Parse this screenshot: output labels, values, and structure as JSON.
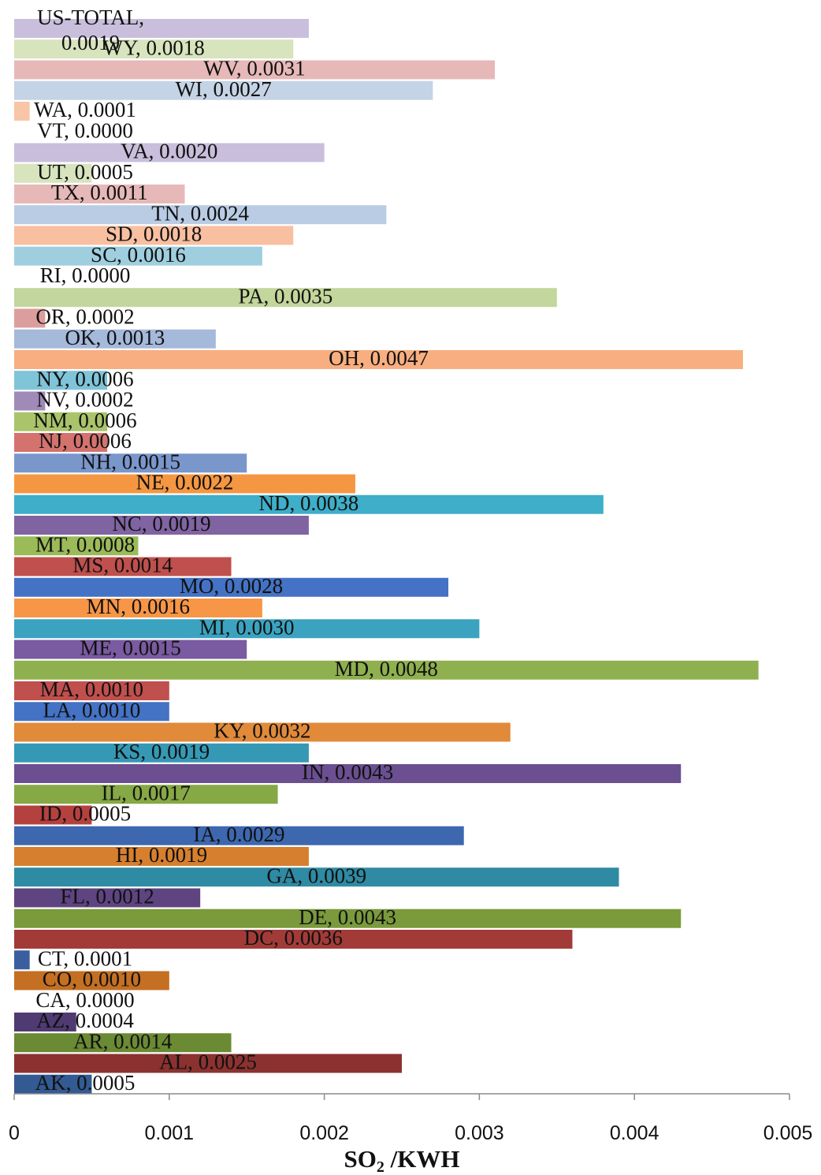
{
  "chart_data": {
    "type": "bar",
    "orientation": "horizontal",
    "title": "",
    "xlabel": "SO2 /KWH",
    "ylabel": "",
    "xlim": [
      0,
      0.005
    ],
    "x_ticks": [
      0,
      0.001,
      0.002,
      0.003,
      0.004,
      0.005
    ],
    "x_tick_labels": [
      "0",
      "0.001",
      "0.002",
      "0.003",
      "0.004",
      "0.005"
    ],
    "grid": false,
    "legend": "none",
    "bars": [
      {
        "label": "US-TOTAL",
        "value": 0.0019,
        "value_text": "0.0019",
        "color": "#c9bfdc"
      },
      {
        "label": "WY",
        "value": 0.0018,
        "value_text": "0.0018",
        "color": "#d7e4bd"
      },
      {
        "label": "WV",
        "value": 0.0031,
        "value_text": "0.0031",
        "color": "#e6b9b8"
      },
      {
        "label": "WI",
        "value": 0.0027,
        "value_text": "0.0027",
        "color": "#c5d3e6"
      },
      {
        "label": "WA",
        "value": 0.0001,
        "value_text": "0.0001",
        "color": "#f8c6a6"
      },
      {
        "label": "VT",
        "value": 0.0,
        "value_text": "0.0000",
        "color": "#b9a9d0"
      },
      {
        "label": "VA",
        "value": 0.002,
        "value_text": "0.0020",
        "color": "#c9bfdc"
      },
      {
        "label": "UT",
        "value": 0.0005,
        "value_text": "0.0005",
        "color": "#d7e4bd"
      },
      {
        "label": "TX",
        "value": 0.0011,
        "value_text": "0.0011",
        "color": "#e6b9b8"
      },
      {
        "label": "TN",
        "value": 0.0024,
        "value_text": "0.0024",
        "color": "#b9cce4"
      },
      {
        "label": "SD",
        "value": 0.0018,
        "value_text": "0.0018",
        "color": "#f8bfa0"
      },
      {
        "label": "SC",
        "value": 0.0016,
        "value_text": "0.0016",
        "color": "#9fcfdf"
      },
      {
        "label": "RI",
        "value": 0.0,
        "value_text": "0.0000",
        "color": "#b9a9d0"
      },
      {
        "label": "PA",
        "value": 0.0035,
        "value_text": "0.0035",
        "color": "#c3d69b"
      },
      {
        "label": "OR",
        "value": 0.0002,
        "value_text": "0.0002",
        "color": "#dc9e9c"
      },
      {
        "label": "OK",
        "value": 0.0013,
        "value_text": "0.0013",
        "color": "#a5b9db"
      },
      {
        "label": "OH",
        "value": 0.0047,
        "value_text": "0.0047",
        "color": "#f8ae80"
      },
      {
        "label": "NY",
        "value": 0.0006,
        "value_text": "0.0006",
        "color": "#7fc4d8"
      },
      {
        "label": "NV",
        "value": 0.0002,
        "value_text": "0.0002",
        "color": "#9f8ab8"
      },
      {
        "label": "NM",
        "value": 0.0006,
        "value_text": "0.0006",
        "color": "#a9c46a"
      },
      {
        "label": "NJ",
        "value": 0.0006,
        "value_text": "0.0006",
        "color": "#d4726e"
      },
      {
        "label": "NH",
        "value": 0.0015,
        "value_text": "0.0015",
        "color": "#7a97cc"
      },
      {
        "label": "NE",
        "value": 0.0022,
        "value_text": "0.0022",
        "color": "#f59742"
      },
      {
        "label": "ND",
        "value": 0.0038,
        "value_text": "0.0038",
        "color": "#3eaec9"
      },
      {
        "label": "NC",
        "value": 0.0019,
        "value_text": "0.0019",
        "color": "#8064a2"
      },
      {
        "label": "MT",
        "value": 0.0008,
        "value_text": "0.0008",
        "color": "#9bbb59"
      },
      {
        "label": "MS",
        "value": 0.0014,
        "value_text": "0.0014",
        "color": "#c0504d"
      },
      {
        "label": "MO",
        "value": 0.0028,
        "value_text": "0.0028",
        "color": "#4472c4"
      },
      {
        "label": "MN",
        "value": 0.0016,
        "value_text": "0.0016",
        "color": "#f79646"
      },
      {
        "label": "MI",
        "value": 0.003,
        "value_text": "0.0030",
        "color": "#3ba3c0"
      },
      {
        "label": "ME",
        "value": 0.0015,
        "value_text": "0.0015",
        "color": "#7a5aa0"
      },
      {
        "label": "MD",
        "value": 0.0048,
        "value_text": "0.0048",
        "color": "#8fb04e"
      },
      {
        "label": "MA",
        "value": 0.001,
        "value_text": "0.0010",
        "color": "#c0504d"
      },
      {
        "label": "LA",
        "value": 0.001,
        "value_text": "0.0010",
        "color": "#4472c4"
      },
      {
        "label": "KY",
        "value": 0.0032,
        "value_text": "0.0032",
        "color": "#e08a3a"
      },
      {
        "label": "KS",
        "value": 0.0019,
        "value_text": "0.0019",
        "color": "#3599b5"
      },
      {
        "label": "IN",
        "value": 0.0043,
        "value_text": "0.0043",
        "color": "#6b4f90"
      },
      {
        "label": "IL",
        "value": 0.0017,
        "value_text": "0.0017",
        "color": "#86a845"
      },
      {
        "label": "ID",
        "value": 0.0005,
        "value_text": "0.0005",
        "color": "#b5413e"
      },
      {
        "label": "IA",
        "value": 0.0029,
        "value_text": "0.0029",
        "color": "#3d68b0"
      },
      {
        "label": "HI",
        "value": 0.0019,
        "value_text": "0.0019",
        "color": "#d67f2e"
      },
      {
        "label": "GA",
        "value": 0.0039,
        "value_text": "0.0039",
        "color": "#2f8aa3"
      },
      {
        "label": "FL",
        "value": 0.0012,
        "value_text": "0.0012",
        "color": "#5e4480"
      },
      {
        "label": "DE",
        "value": 0.0043,
        "value_text": "0.0043",
        "color": "#7a9a3c"
      },
      {
        "label": "DC",
        "value": 0.0036,
        "value_text": "0.0036",
        "color": "#a23b38"
      },
      {
        "label": "CT",
        "value": 0.0001,
        "value_text": "0.0001",
        "color": "#3a5fa0"
      },
      {
        "label": "CO",
        "value": 0.001,
        "value_text": "0.0010",
        "color": "#c46f22"
      },
      {
        "label": "CA",
        "value": 0.0,
        "value_text": "0.0000",
        "color": "#2b7d95"
      },
      {
        "label": "AZ",
        "value": 0.0004,
        "value_text": "0.0004",
        "color": "#4f3a72"
      },
      {
        "label": "AR",
        "value": 0.0014,
        "value_text": "0.0014",
        "color": "#6a8a34"
      },
      {
        "label": "AL",
        "value": 0.0025,
        "value_text": "0.0025",
        "color": "#8b3230"
      },
      {
        "label": "AK",
        "value": 0.0005,
        "value_text": "0.0005",
        "color": "#335a92"
      }
    ]
  }
}
